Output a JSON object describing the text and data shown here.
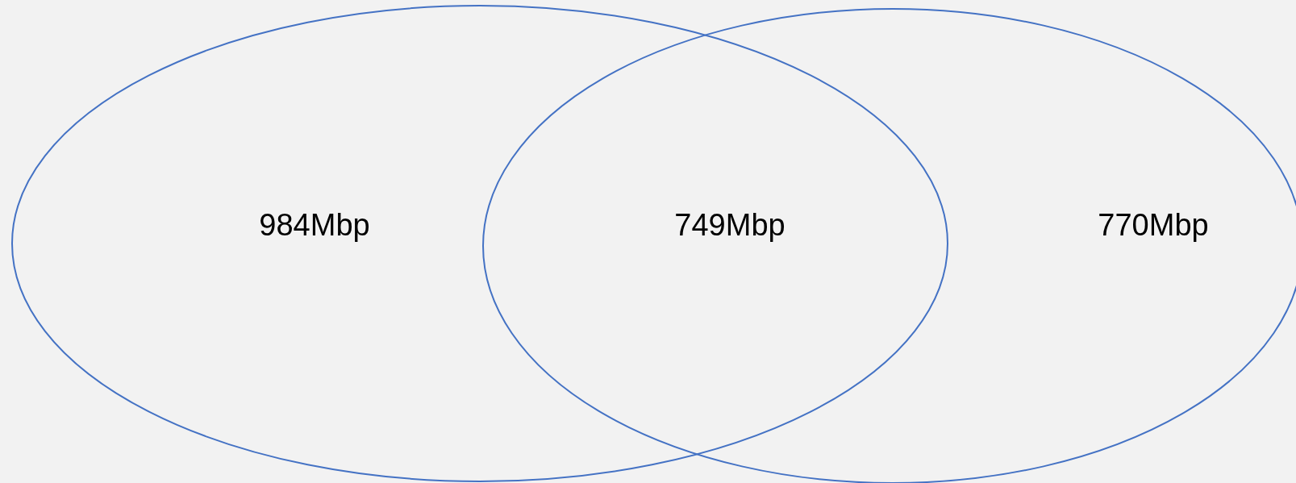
{
  "chart_data": {
    "type": "other",
    "values": [
      984,
      749,
      770
    ],
    "value_labels": [
      "984Mbp",
      "749Mbp",
      "770Mbp"
    ],
    "color": "#4472c4"
  }
}
